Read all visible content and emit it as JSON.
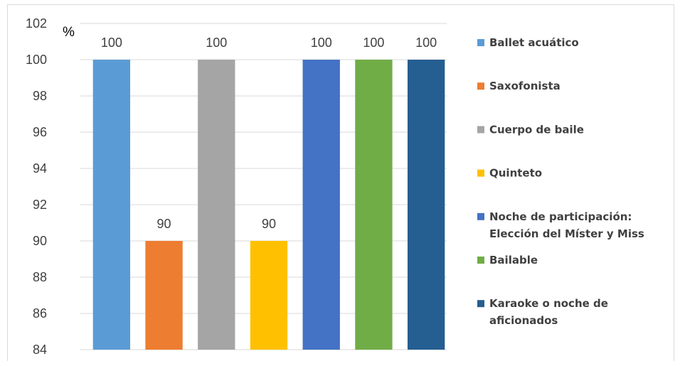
{
  "chart_data": {
    "type": "bar",
    "unit_label": "%",
    "categories": [
      "Ballet acuático",
      "Saxofonista",
      "Cuerpo de baile",
      "Quinteto",
      "Noche de participación: Elección del Míster y Miss",
      "Bailable",
      "Karaoke o noche de aficionados"
    ],
    "legend_lines": [
      [
        "Ballet acuático"
      ],
      [
        "Saxofonista"
      ],
      [
        "Cuerpo de baile"
      ],
      [
        "Quinteto"
      ],
      [
        "Noche de participación:",
        "Elección del Míster y Miss"
      ],
      [
        "Bailable"
      ],
      [
        "Karaoke o noche de",
        "aficionados"
      ]
    ],
    "values": [
      100,
      90,
      100,
      90,
      100,
      100,
      100
    ],
    "data_labels": [
      "100",
      "90",
      "100",
      "90",
      "100",
      "100",
      "100"
    ],
    "colors": [
      "#5b9bd5",
      "#ed7d31",
      "#a5a5a5",
      "#ffc000",
      "#4472c4",
      "#70ad47",
      "#255e91"
    ],
    "ylim": [
      84,
      102
    ],
    "ytick_step": 2,
    "yticks": [
      "84",
      "86",
      "88",
      "90",
      "92",
      "94",
      "96",
      "98",
      "100",
      "102"
    ],
    "grid": true,
    "legend_position": "right",
    "title": "",
    "xlabel": "",
    "ylabel": ""
  }
}
